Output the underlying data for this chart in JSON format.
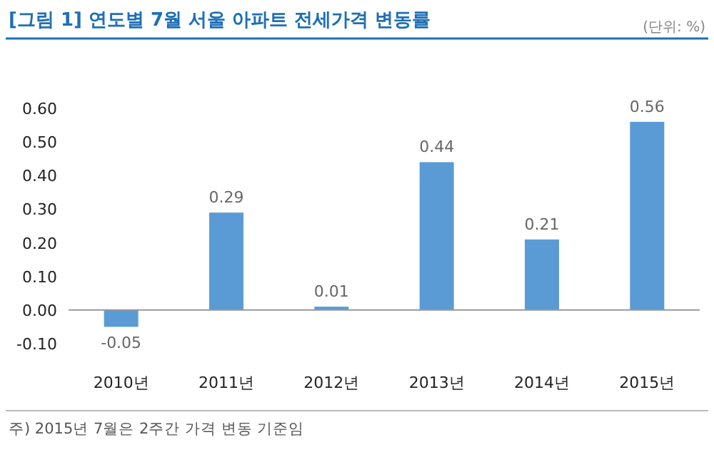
{
  "chart_data": {
    "type": "bar",
    "title": "[그림 1] 연도별 7월 서울 아파트 전세가격 변동률",
    "subtitle": "(단위: %)",
    "categories": [
      "2010년",
      "2011년",
      "2012년",
      "2013년",
      "2014년",
      "2015년"
    ],
    "values": [
      -0.05,
      0.29,
      0.01,
      0.44,
      0.21,
      0.56
    ],
    "color": "#5b9bd5",
    "ylim": [
      -0.1,
      0.6
    ],
    "yticks": [
      {
        "value": -0.1,
        "label": "-0.10"
      },
      {
        "value": 0,
        "label": "0.00"
      },
      {
        "value": 0.1,
        "label": "0.10"
      },
      {
        "value": 0.2,
        "label": "0.20"
      },
      {
        "value": 0.3,
        "label": "0.30"
      },
      {
        "value": 0.4,
        "label": "0.40"
      },
      {
        "value": 0.5,
        "label": "0.50"
      },
      {
        "value": 0.6,
        "label": "0.60"
      }
    ],
    "data_labels": true,
    "annotations": [
      "주) 2015년 7월은 2주간 가격 변동 기준임"
    ]
  }
}
